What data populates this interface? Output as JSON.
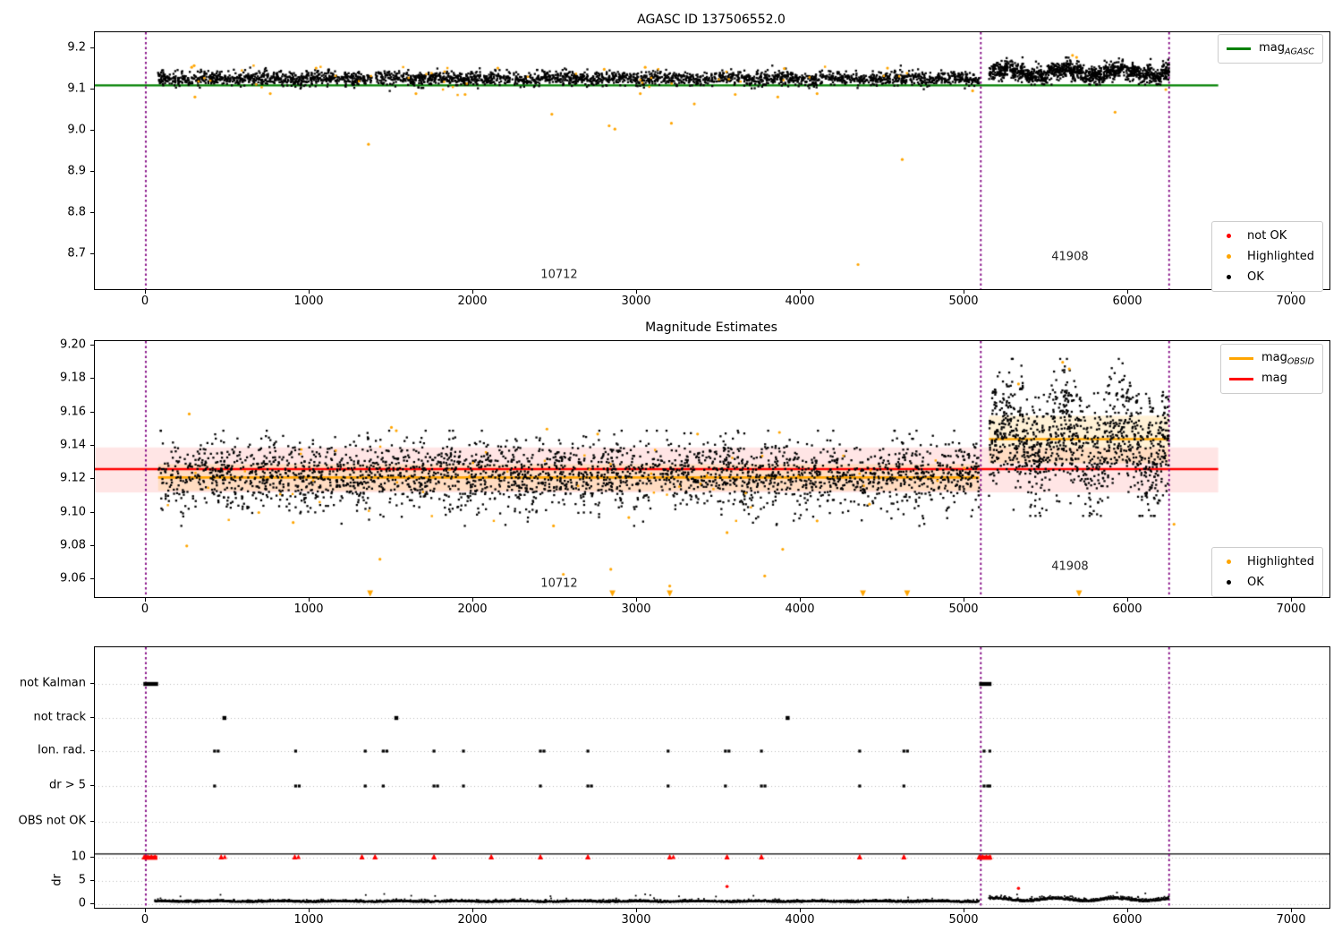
{
  "colors": {
    "purple": "#800080",
    "green": "#008000",
    "red": "#ff0000",
    "orange": "#ffa500",
    "black": "#000000",
    "pink_band": "rgba(255,0,0,0.10)",
    "orange_band": "rgba(255,165,0,0.16)",
    "grid": "#bbbbbb"
  },
  "legends": {
    "mag_agasc": {
      "prefix": "mag",
      "sub": "AGASC",
      "color": "#008000"
    },
    "status_top": {
      "items": [
        {
          "label": "not OK",
          "color": "#ff0000"
        },
        {
          "label": "Highlighted",
          "color": "#ffa500"
        },
        {
          "label": "OK",
          "color": "#000000"
        }
      ]
    },
    "mag_lines": {
      "items": [
        {
          "prefix": "mag",
          "sub": "OBSID",
          "color": "#ffa500"
        },
        {
          "prefix": "mag",
          "sub": "",
          "color": "#ff0000"
        }
      ]
    },
    "status_middle": {
      "items": [
        {
          "label": "Highlighted",
          "color": "#ffa500"
        },
        {
          "label": "OK",
          "color": "#000000"
        }
      ]
    }
  },
  "axes": {
    "x_ticks": [
      {
        "v": 0,
        "label": "0"
      },
      {
        "v": 1000,
        "label": "1000"
      },
      {
        "v": 2000,
        "label": "2000"
      },
      {
        "v": 3000,
        "label": "3000"
      },
      {
        "v": 4000,
        "label": "4000"
      },
      {
        "v": 5000,
        "label": "5000"
      },
      {
        "v": 6000,
        "label": "6000"
      },
      {
        "v": 7000,
        "label": "7000"
      }
    ],
    "top_y_ticks": [
      {
        "v": 9.2,
        "label": "9.2"
      },
      {
        "v": 9.1,
        "label": "9.1"
      },
      {
        "v": 9.0,
        "label": "9.0"
      },
      {
        "v": 8.9,
        "label": "8.9"
      },
      {
        "v": 8.8,
        "label": "8.8"
      },
      {
        "v": 8.7,
        "label": "8.7"
      }
    ],
    "mid_y_ticks": [
      {
        "v": 9.2,
        "label": "9.20"
      },
      {
        "v": 9.18,
        "label": "9.18"
      },
      {
        "v": 9.16,
        "label": "9.16"
      },
      {
        "v": 9.14,
        "label": "9.14"
      },
      {
        "v": 9.12,
        "label": "9.12"
      },
      {
        "v": 9.1,
        "label": "9.10"
      },
      {
        "v": 9.08,
        "label": "9.08"
      },
      {
        "v": 9.06,
        "label": "9.06"
      }
    ],
    "flags_categories": [
      "not Kalman",
      "not track",
      "Ion. rad.",
      "dr > 5",
      "OBS not OK"
    ],
    "dr_ticks": [
      {
        "v": 10,
        "label": "10"
      },
      {
        "v": 5,
        "label": "5"
      },
      {
        "v": 0,
        "label": "0"
      }
    ],
    "dr_axis_label": "dr"
  },
  "chart_data": [
    {
      "id": "mag_agasc",
      "type": "scatter",
      "title": "AGASC ID 137506552.0",
      "xlim": [
        -312,
        7225
      ],
      "ylim": [
        8.609,
        9.239
      ],
      "agasc_mag_line": {
        "y": 9.11,
        "x0": -312,
        "x1": 6550
      },
      "vlines": [
        0,
        5100,
        6250
      ],
      "ok_clusters": [
        {
          "x0": 75,
          "x1": 5090,
          "n": 2800,
          "mean": 9.127,
          "sd": 0.0085,
          "ymin": 9.092,
          "ymax": 9.158,
          "wave": 0.002
        },
        {
          "x0": 5150,
          "x1": 6250,
          "n": 1150,
          "mean": 9.141,
          "sd": 0.011,
          "ymin": 9.112,
          "ymax": 9.178,
          "wave": 0.009
        }
      ],
      "highlighted_random": {
        "x0": 75,
        "x1": 5090,
        "n": 40,
        "mean": 9.128,
        "sd": 0.013,
        "ymin": 9.085,
        "ymax": 9.158
      },
      "highlighted_points": [
        [
          300,
          9.082
        ],
        [
          1360,
          8.967
        ],
        [
          1950,
          9.088
        ],
        [
          2480,
          9.04
        ],
        [
          2830,
          9.012
        ],
        [
          2865,
          9.004
        ],
        [
          3020,
          9.09
        ],
        [
          3210,
          9.018
        ],
        [
          3350,
          9.065
        ],
        [
          3600,
          9.088
        ],
        [
          3860,
          9.082
        ],
        [
          4100,
          9.09
        ],
        [
          4350,
          8.675
        ],
        [
          4620,
          8.93
        ],
        [
          5050,
          9.097
        ],
        [
          5920,
          9.045
        ],
        [
          6230,
          9.1
        ],
        [
          1650,
          9.09
        ],
        [
          760,
          9.09
        ],
        [
          280,
          9.154
        ],
        [
          295,
          9.158
        ],
        [
          1040,
          9.152
        ],
        [
          2150,
          9.152
        ],
        [
          2800,
          9.149
        ],
        [
          3050,
          9.154
        ],
        [
          3900,
          9.151
        ],
        [
          5660,
          9.183
        ],
        [
          5685,
          9.178
        ],
        [
          4530,
          9.152
        ]
      ],
      "annotations": [
        {
          "text": "10712",
          "x": 2530,
          "y": 8.648
        },
        {
          "text": "41908",
          "x": 5650,
          "y": 8.692
        }
      ]
    },
    {
      "id": "mag_estimates",
      "type": "scatter",
      "title": "Magnitude Estimates",
      "xlim": [
        -312,
        7225
      ],
      "ylim": [
        9.049,
        9.203
      ],
      "mag_line": {
        "y": 9.126,
        "x0": -312,
        "x1": 6550,
        "band": [
          9.112,
          9.139
        ]
      },
      "obsid_lines": [
        {
          "x0": 75,
          "x1": 5090,
          "y": 9.121,
          "band": [
            9.113,
            9.129
          ]
        },
        {
          "x0": 5150,
          "x1": 6250,
          "y": 9.144,
          "band": [
            9.1295,
            9.158
          ]
        }
      ],
      "vlines": [
        0,
        5100,
        6250
      ],
      "ok_clusters": [
        {
          "x0": 75,
          "x1": 5090,
          "n": 2800,
          "mean": 9.1225,
          "sd": 0.0105,
          "ymin": 9.092,
          "ymax": 9.149,
          "wave": 0.002
        },
        {
          "x0": 5150,
          "x1": 6250,
          "n": 1150,
          "mean": 9.142,
          "sd": 0.017,
          "ymin": 9.098,
          "ymax": 9.192,
          "wave": 0.012
        }
      ],
      "highlighted_random": {
        "x0": 75,
        "x1": 5090,
        "n": 50,
        "mean": 9.122,
        "sd": 0.013,
        "ymin": 9.095,
        "ymax": 9.15
      },
      "highlighted_points": [
        [
          250,
          9.08
        ],
        [
          265,
          9.159
        ],
        [
          900,
          9.094
        ],
        [
          1430,
          9.072
        ],
        [
          1500,
          9.151
        ],
        [
          1530,
          9.149
        ],
        [
          2450,
          9.15
        ],
        [
          2490,
          9.092
        ],
        [
          2550,
          9.063
        ],
        [
          2760,
          9.147
        ],
        [
          2840,
          9.066
        ],
        [
          2950,
          9.097
        ],
        [
          3200,
          9.056
        ],
        [
          3370,
          9.147
        ],
        [
          3550,
          9.088
        ],
        [
          3780,
          9.062
        ],
        [
          3870,
          9.148
        ],
        [
          3890,
          9.078
        ],
        [
          4420,
          9.105
        ],
        [
          4650,
          9.052
        ],
        [
          5330,
          9.177
        ],
        [
          5600,
          9.19
        ],
        [
          5640,
          9.186
        ],
        [
          6280,
          9.093
        ],
        [
          690,
          9.1
        ],
        [
          4100,
          9.095
        ]
      ],
      "clipped_low_x": [
        1370,
        2850,
        3200,
        4380,
        4650,
        5700
      ],
      "annotations": [
        {
          "text": "10712",
          "x": 2530,
          "y": 9.057
        },
        {
          "text": "41908",
          "x": 5650,
          "y": 9.067
        }
      ]
    },
    {
      "id": "flags",
      "type": "scatter",
      "vlines": [
        0,
        5100,
        6250
      ],
      "hline_dr": 10.8,
      "not_kalman_spans": [
        [
          -15,
          75
        ],
        [
          5090,
          5165
        ]
      ],
      "not_track_x": [
        480,
        1530,
        3920
      ],
      "ion_rad_x": [
        420,
        915,
        1340,
        1450,
        1760,
        1940,
        2410,
        2700,
        3190,
        3540,
        3760,
        4360,
        4630,
        5120,
        5155
      ],
      "dr_gt5_x": [
        420,
        915,
        1340,
        1450,
        1760,
        1940,
        2410,
        2700,
        3190,
        3540,
        3760,
        4360,
        4630,
        5120,
        5155
      ],
      "dr_clip_spans": [
        [
          -10,
          70
        ],
        [
          5090,
          5165
        ]
      ],
      "dr_clip_x": [
        460,
        910,
        1320,
        1400,
        1760,
        2110,
        2410,
        2700,
        3200,
        3550,
        3760,
        4360,
        4630
      ],
      "dr_red_points": [
        [
          3550,
          3.8
        ],
        [
          5330,
          3.4
        ]
      ],
      "dr_trace": [
        {
          "x0": 55,
          "x1": 5090,
          "n": 2900,
          "base": 0.42,
          "noise": 0.2,
          "wave": 0.12
        },
        {
          "x0": 5150,
          "x1": 6250,
          "n": 660,
          "base": 0.55,
          "noise": 0.3,
          "wave": 0.55
        }
      ]
    }
  ]
}
